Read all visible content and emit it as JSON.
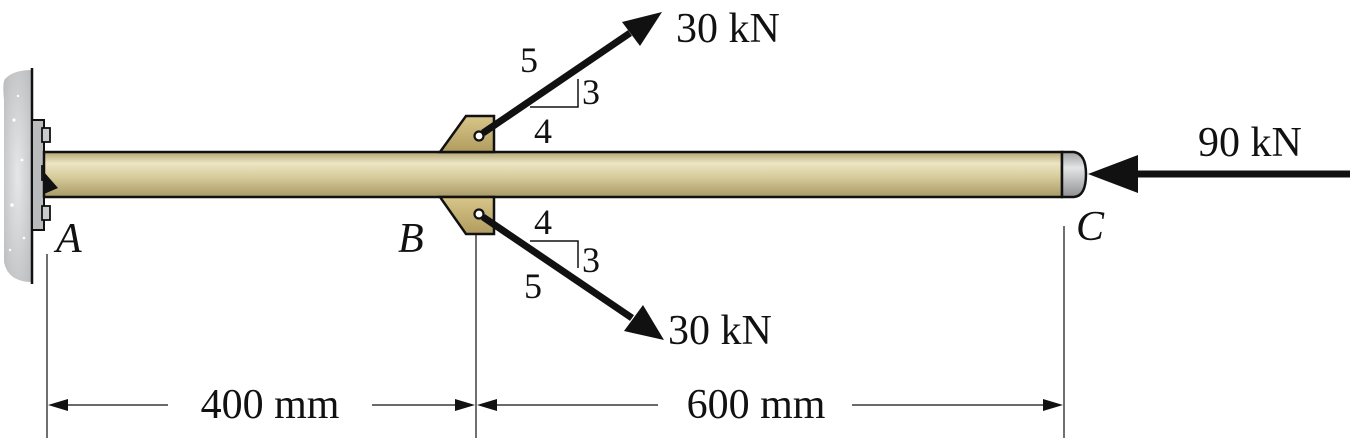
{
  "figure": {
    "points": {
      "a": "A",
      "b": "B",
      "c": "C"
    },
    "forces": {
      "upper": {
        "label": "30 kN",
        "slope_hyp": "5",
        "slope_rise": "3",
        "slope_run": "4"
      },
      "lower": {
        "label": "30 kN",
        "slope_hyp": "5",
        "slope_rise": "3",
        "slope_run": "4"
      },
      "axial": {
        "label": "90 kN"
      }
    },
    "dimensions": {
      "ab": "400 mm",
      "bc": "600 mm"
    },
    "colors": {
      "rod": "#d8cc9c",
      "rod_highlight": "#ece5c4",
      "rod_shadow": "#a89a66",
      "bracket": "#c7b477",
      "wall": "#c9cbcd",
      "end_cap": "#b9bbbd",
      "ink": "#111111"
    }
  }
}
